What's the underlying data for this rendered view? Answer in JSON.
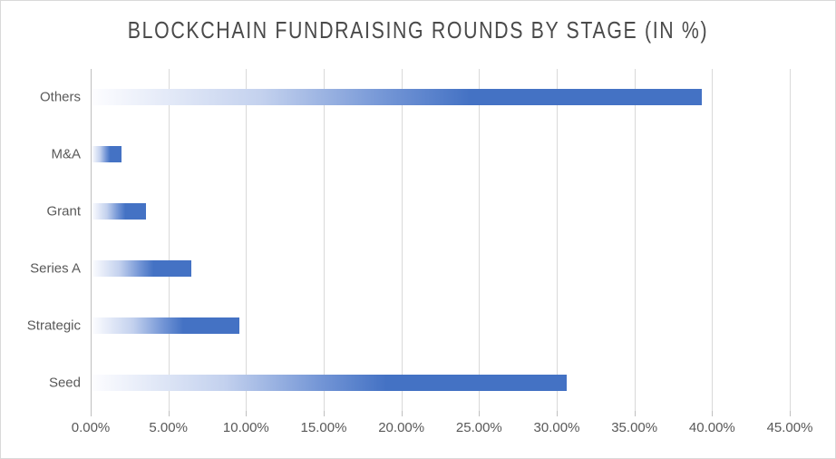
{
  "chart_data": {
    "type": "bar",
    "orientation": "horizontal",
    "title": "BLOCKCHAIN FUNDRAISING ROUNDS BY STAGE (IN %)",
    "categories": [
      "Others",
      "M&A",
      "Grant",
      "Series A",
      "Strategic",
      "Seed"
    ],
    "values": [
      39.3,
      1.9,
      3.5,
      6.4,
      9.5,
      30.6
    ],
    "unit": "%",
    "xlabel": "",
    "ylabel": "",
    "xlim": [
      0,
      45
    ],
    "x_ticks": [
      "0.00%",
      "5.00%",
      "10.00%",
      "15.00%",
      "20.00%",
      "25.00%",
      "30.00%",
      "35.00%",
      "40.00%",
      "45.00%"
    ],
    "x_tick_values": [
      0,
      5,
      10,
      15,
      20,
      25,
      30,
      35,
      40,
      45
    ],
    "grid": true,
    "legend": false,
    "colors": {
      "bar_fill_end": "#4472c4",
      "bar_fill_start": "#fdfdff",
      "gridline": "#d9d9d9",
      "axis_line": "#bfbfbf",
      "tick_label": "#595959",
      "category_label": "#595959",
      "title": "#4a4a4a",
      "background": "#ffffff",
      "frame_border": "#d9d9d9"
    }
  }
}
